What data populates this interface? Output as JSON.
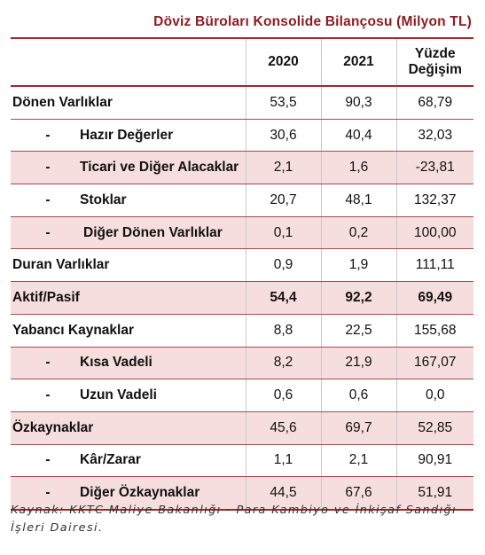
{
  "title": "Döviz Büroları Konsolide Bilançosu (Milyon TL)",
  "headers": {
    "label": "",
    "y2020": "2020",
    "y2021": "2021",
    "change_line1": "Yüzde",
    "change_line2": "Değişim"
  },
  "rows": [
    {
      "dash": "",
      "label": "Dönen Varlıklar",
      "v2020": "53,5",
      "v2021": "90,3",
      "change": "68,79"
    },
    {
      "dash": "-",
      "label": "Hazır Değerler",
      "v2020": "30,6",
      "v2021": "40,4",
      "change": "32,03"
    },
    {
      "dash": "-",
      "label": "Ticari ve Diğer Alacaklar",
      "v2020": "2,1",
      "v2021": "1,6",
      "change": "-23,81"
    },
    {
      "dash": "-",
      "label": "Stoklar",
      "v2020": "20,7",
      "v2021": "48,1",
      "change": "132,37"
    },
    {
      "dash": "-",
      "label": "Diğer Dönen Varlıklar",
      "v2020": "0,1",
      "v2021": "0,2",
      "change": "100,00"
    },
    {
      "dash": "",
      "label": "Duran Varlıklar",
      "v2020": "0,9",
      "v2021": "1,9",
      "change": "111,11"
    },
    {
      "dash": "",
      "label": "Aktif/Pasif",
      "v2020": "54,4",
      "v2021": "92,2",
      "change": "69,49"
    },
    {
      "dash": "",
      "label": "Yabancı Kaynaklar",
      "v2020": "8,8",
      "v2021": "22,5",
      "change": "155,68"
    },
    {
      "dash": "-",
      "label": "Kısa Vadeli",
      "v2020": "8,2",
      "v2021": "21,9",
      "change": "167,07"
    },
    {
      "dash": "-",
      "label": "Uzun Vadeli",
      "v2020": "0,6",
      "v2021": "0,6",
      "change": "0,0"
    },
    {
      "dash": "",
      "label": "Özkaynaklar",
      "v2020": "45,6",
      "v2021": "69,7",
      "change": "52,85"
    },
    {
      "dash": "-",
      "label": "Kâr/Zarar",
      "v2020": "1,1",
      "v2021": "2,1",
      "change": "90,91"
    },
    {
      "dash": "-",
      "label": "Diğer Özkaynaklar",
      "v2020": "44,5",
      "v2021": "67,6",
      "change": "51,91"
    }
  ],
  "source_note": "Kaynak: KKTC Maliye Bakanlığı - Para Kambiyo ve İnkişaf Sandığı İşleri Dairesi.",
  "colors": {
    "accent": "#9b2a2f",
    "title": "#8b1d22",
    "shaded_row": "#f5dedd"
  }
}
